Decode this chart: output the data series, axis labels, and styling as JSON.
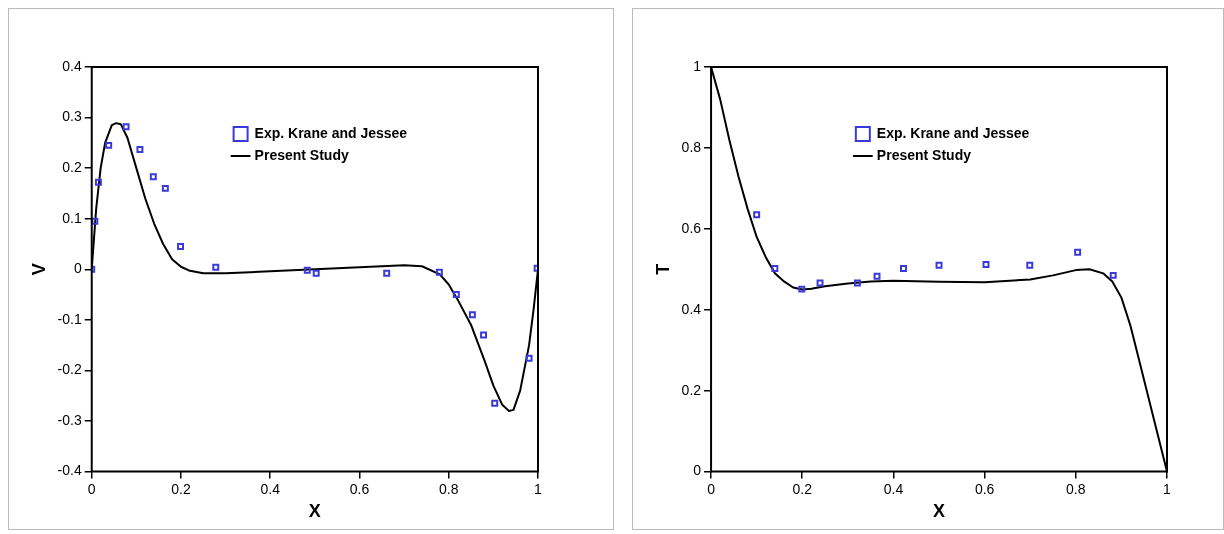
{
  "chart_data": [
    {
      "type": "scatter",
      "xlabel": "X",
      "ylabel": "V",
      "xlim": [
        0,
        1
      ],
      "ylim": [
        -0.4,
        0.4
      ],
      "xticks": [
        0,
        0.2,
        0.4,
        0.6,
        0.8,
        1
      ],
      "yticks": [
        -0.4,
        -0.3,
        -0.2,
        -0.1,
        0,
        0.1,
        0.2,
        0.3,
        0.4
      ],
      "grid": false,
      "legend": "top right",
      "series": [
        {
          "name": "Exp. Krane and Jessee",
          "type": "scatter",
          "marker": "square",
          "color": "#3a3adb",
          "x": [
            0,
            0.007,
            0.015,
            0.038,
            0.077,
            0.108,
            0.138,
            0.165,
            0.199,
            0.278,
            0.483,
            0.503,
            0.661,
            0.779,
            0.817,
            0.853,
            0.878,
            0.903,
            0.98,
            0.998
          ],
          "values": [
            0,
            0.095,
            0.172,
            0.245,
            0.282,
            0.237,
            0.183,
            0.16,
            0.045,
            0.004,
            -0.002,
            -0.008,
            -0.008,
            -0.006,
            -0.05,
            -0.09,
            -0.13,
            -0.265,
            -0.176,
            0.002
          ]
        },
        {
          "name": "Present Study",
          "type": "line",
          "marker": "none",
          "color": "#000000",
          "x": [
            0,
            0.01,
            0.02,
            0.03,
            0.045,
            0.055,
            0.065,
            0.08,
            0.1,
            0.12,
            0.14,
            0.16,
            0.18,
            0.2,
            0.22,
            0.25,
            0.3,
            0.4,
            0.5,
            0.6,
            0.7,
            0.74,
            0.78,
            0.8,
            0.82,
            0.85,
            0.88,
            0.9,
            0.92,
            0.935,
            0.945,
            0.96,
            0.98,
            0.99,
            1
          ],
          "values": [
            0,
            0.12,
            0.2,
            0.25,
            0.285,
            0.289,
            0.287,
            0.26,
            0.2,
            0.14,
            0.09,
            0.05,
            0.02,
            0.005,
            -0.003,
            -0.008,
            -0.008,
            -0.004,
            0,
            0.004,
            0.008,
            0.006,
            -0.01,
            -0.03,
            -0.06,
            -0.11,
            -0.18,
            -0.23,
            -0.268,
            -0.28,
            -0.278,
            -0.24,
            -0.15,
            -0.08,
            0
          ]
        }
      ]
    },
    {
      "type": "scatter",
      "xlabel": "X",
      "ylabel": "T",
      "xlim": [
        0,
        1
      ],
      "ylim": [
        0,
        1
      ],
      "xticks": [
        0,
        0.2,
        0.4,
        0.6,
        0.8,
        1
      ],
      "yticks": [
        0,
        0.2,
        0.4,
        0.6,
        0.8,
        1
      ],
      "grid": false,
      "legend": "top right",
      "series": [
        {
          "name": "Exp. Krane and Jessee",
          "type": "scatter",
          "marker": "square",
          "color": "#3a3adb",
          "x": [
            0.1,
            0.14,
            0.199,
            0.239,
            0.321,
            0.364,
            0.422,
            0.5,
            0.603,
            0.699,
            0.804,
            0.882
          ],
          "values": [
            0.635,
            0.502,
            0.451,
            0.466,
            0.466,
            0.483,
            0.502,
            0.51,
            0.512,
            0.51,
            0.542,
            0.485
          ]
        },
        {
          "name": "Present Study",
          "type": "line",
          "marker": "none",
          "color": "#000000",
          "x": [
            0,
            0.02,
            0.04,
            0.06,
            0.08,
            0.1,
            0.12,
            0.14,
            0.16,
            0.18,
            0.2,
            0.22,
            0.25,
            0.3,
            0.35,
            0.4,
            0.5,
            0.6,
            0.7,
            0.75,
            0.8,
            0.83,
            0.86,
            0.88,
            0.9,
            0.92,
            0.94,
            0.96,
            0.98,
            1
          ],
          "values": [
            1,
            0.92,
            0.82,
            0.73,
            0.65,
            0.58,
            0.53,
            0.49,
            0.47,
            0.455,
            0.45,
            0.452,
            0.458,
            0.465,
            0.47,
            0.472,
            0.469,
            0.468,
            0.475,
            0.485,
            0.498,
            0.5,
            0.49,
            0.47,
            0.43,
            0.36,
            0.27,
            0.18,
            0.09,
            0
          ]
        }
      ]
    }
  ]
}
